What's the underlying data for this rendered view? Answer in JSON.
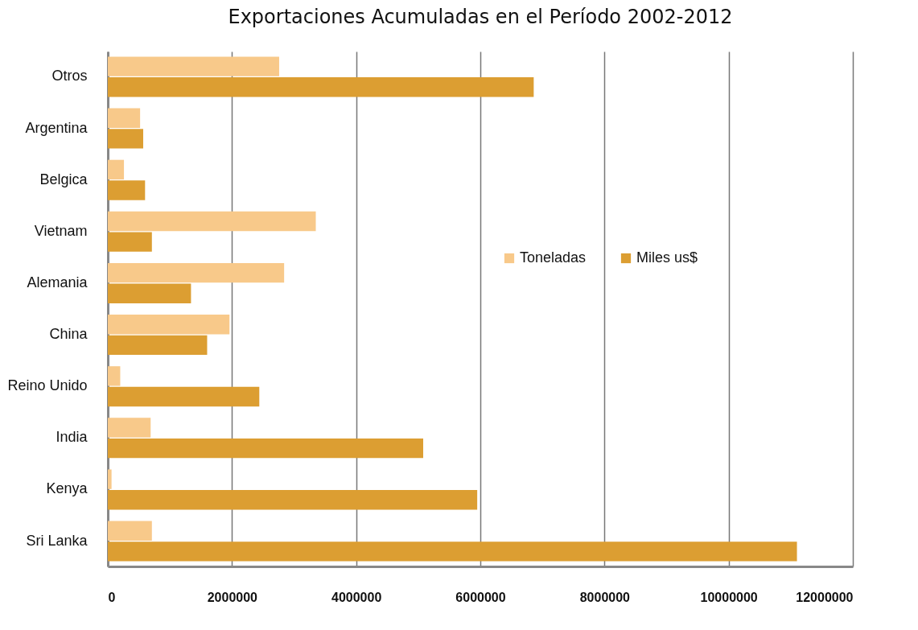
{
  "chart_data": {
    "type": "bar",
    "orientation": "horizontal",
    "title": "Exportaciones Acumuladas en el Período 2002-2012",
    "categories": [
      "Otros",
      "Argentina",
      "Belgica",
      "Vietnam",
      "Alemania",
      "China",
      "Reino Unido",
      "India",
      "Kenya",
      "Sri Lanka"
    ],
    "series": [
      {
        "name": "Toneladas",
        "color": "#f8c98a",
        "values": [
          2760000,
          520000,
          260000,
          3350000,
          2840000,
          1960000,
          200000,
          690000,
          60000,
          710000
        ]
      },
      {
        "name": "Miles us$",
        "color": "#dc9e32",
        "values": [
          6860000,
          570000,
          600000,
          710000,
          1340000,
          1600000,
          2440000,
          5080000,
          5950000,
          11100000
        ]
      }
    ],
    "xlim": [
      0,
      12000000
    ],
    "xticks": [
      0,
      2000000,
      4000000,
      6000000,
      8000000,
      10000000,
      12000000
    ],
    "grid": "x",
    "legend": "right"
  }
}
